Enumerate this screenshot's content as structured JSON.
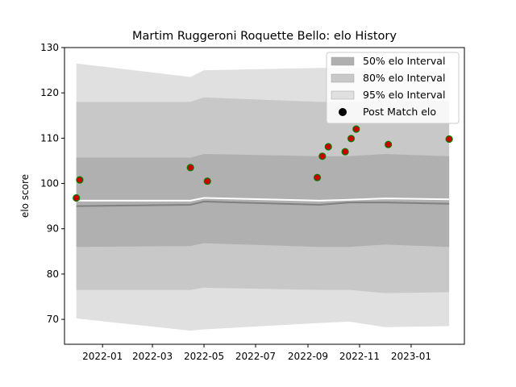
{
  "chart_data": {
    "type": "line",
    "title": "Martim Ruggeroni Roquette Bello: elo History",
    "xlabel": "",
    "ylabel": "elo score",
    "ylim": [
      64.5,
      130
    ],
    "xlim": [
      "2021-11-17",
      "2023-03-05"
    ],
    "yticks": [
      70,
      80,
      90,
      100,
      110,
      120,
      130
    ],
    "xticks": [
      "2022-01",
      "2022-03",
      "2022-05",
      "2022-07",
      "2022-09",
      "2022-11",
      "2023-01"
    ],
    "grid": false,
    "legend": {
      "placement": "top-right",
      "entries": [
        {
          "label": "50% elo Interval",
          "color": "#b0b0b0",
          "kind": "band"
        },
        {
          "label": "80% elo Interval",
          "color": "#c8c8c8",
          "kind": "band"
        },
        {
          "label": "95% elo Interval",
          "color": "#e0e0e0",
          "kind": "band"
        },
        {
          "label": "Post Match elo",
          "color": "#000000",
          "kind": "marker"
        }
      ]
    },
    "dates": [
      "2021-12-01",
      "2022-04-15",
      "2022-05-01",
      "2022-09-15",
      "2022-10-20",
      "2022-12-01",
      "2023-02-15"
    ],
    "band95": {
      "upper": [
        126.5,
        123.5,
        125.0,
        125.5,
        125.5,
        125.5,
        125.5
      ],
      "lower": [
        70.2,
        67.5,
        67.8,
        69.2,
        69.5,
        68.3,
        68.5
      ]
    },
    "band80": {
      "upper": [
        118.0,
        118.0,
        119.0,
        118.0,
        118.0,
        118.0,
        118.0
      ],
      "lower": [
        76.5,
        76.5,
        77.0,
        76.5,
        76.5,
        75.8,
        76.0
      ]
    },
    "band50": {
      "upper": [
        105.7,
        105.7,
        106.5,
        106.0,
        106.0,
        106.5,
        106.0
      ],
      "lower": [
        86.0,
        86.2,
        86.8,
        86.0,
        86.0,
        86.5,
        86.0
      ]
    },
    "mean_line": {
      "values": [
        95.0,
        95.3,
        96.0,
        95.3,
        95.8,
        95.8,
        95.5
      ],
      "color": "#808080"
    },
    "upper_line": {
      "values": [
        96.2,
        96.2,
        96.8,
        96.2,
        96.4,
        96.7,
        96.5
      ],
      "color": "#ffffff"
    },
    "points": {
      "color": "#cc0000",
      "edge": "#008000",
      "x": [
        "2021-12-01",
        "2021-12-05",
        "2022-04-15",
        "2022-05-05",
        "2022-09-12",
        "2022-09-18",
        "2022-09-25",
        "2022-10-15",
        "2022-10-22",
        "2022-10-28",
        "2022-12-05",
        "2023-02-15"
      ],
      "y": [
        96.8,
        100.8,
        103.5,
        100.5,
        101.3,
        106.0,
        108.1,
        107.0,
        109.9,
        112.0,
        108.6,
        109.8
      ]
    }
  }
}
